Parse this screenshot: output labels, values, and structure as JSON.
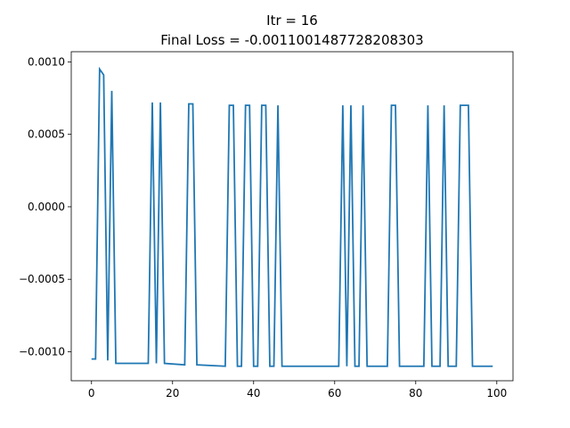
{
  "chart_data": {
    "type": "line",
    "title": "Itr = 16",
    "subtitle": "Final Loss = -0.0011001487728208303",
    "xlabel": "",
    "ylabel": "",
    "xlim": [
      -5,
      104
    ],
    "ylim": [
      -0.0012,
      0.00107
    ],
    "xticks": [
      0,
      20,
      40,
      60,
      80,
      100
    ],
    "yticks": [
      -0.001,
      -0.0005,
      0.0,
      0.0005,
      0.001
    ],
    "xtick_labels": [
      "0",
      "20",
      "40",
      "60",
      "80",
      "100"
    ],
    "ytick_labels": [
      "−0.0010",
      "−0.0005",
      "0.0000",
      "0.0005",
      "0.0010"
    ],
    "grid": false,
    "line_color": "#1f77b4",
    "series": [
      {
        "x": [
          0,
          1,
          2,
          3,
          4,
          5,
          6,
          14,
          15,
          16,
          17,
          18,
          23,
          24,
          25,
          26,
          33,
          34,
          35,
          36,
          37,
          38,
          39,
          40,
          41,
          42,
          43,
          44,
          45,
          46,
          47,
          61,
          62,
          63,
          64,
          65,
          66,
          67,
          68,
          73,
          74,
          75,
          76,
          82,
          83,
          84,
          85,
          86,
          87,
          88,
          89,
          90,
          91,
          92,
          93,
          94,
          95,
          99
        ],
        "y": [
          -0.00105,
          -0.00105,
          0.00095,
          0.00091,
          -0.00106,
          0.0008,
          -0.00108,
          -0.00108,
          0.00072,
          -0.00108,
          0.00072,
          -0.00108,
          -0.00109,
          0.00071,
          0.00071,
          -0.00109,
          -0.0011,
          0.0007,
          0.0007,
          -0.0011,
          -0.0011,
          0.0007,
          0.0007,
          -0.0011,
          -0.0011,
          0.0007,
          0.0007,
          -0.0011,
          -0.0011,
          0.0007,
          -0.0011,
          -0.0011,
          0.0007,
          -0.0011,
          0.0007,
          -0.0011,
          -0.0011,
          0.0007,
          -0.0011,
          -0.0011,
          0.0007,
          0.0007,
          -0.0011,
          -0.0011,
          0.0007,
          -0.0011,
          -0.0011,
          -0.0011,
          0.0007,
          -0.0011,
          -0.0011,
          -0.0011,
          0.0007,
          0.0007,
          0.0007,
          -0.0011,
          -0.0011,
          -0.0011
        ]
      }
    ]
  }
}
